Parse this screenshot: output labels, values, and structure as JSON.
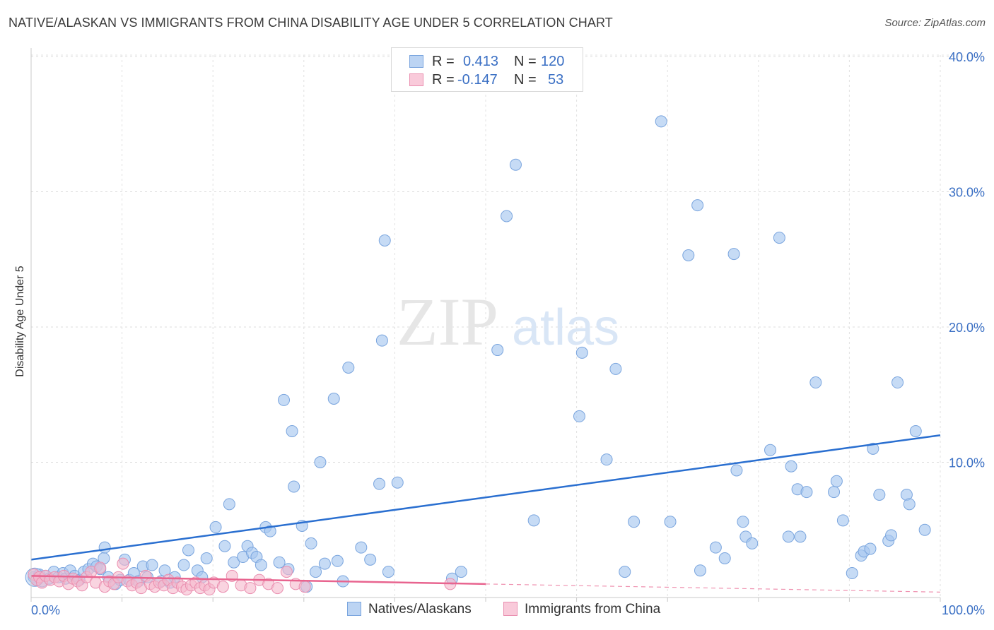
{
  "title": "NATIVE/ALASKAN VS IMMIGRANTS FROM CHINA DISABILITY AGE UNDER 5 CORRELATION CHART",
  "source": "Source: ZipAtlas.com",
  "watermark": {
    "zip": "ZIP",
    "atlas": "atlas"
  },
  "legend": {
    "series1": {
      "r_label": "R =",
      "r_value": "0.413",
      "n_label": "N =",
      "n_value": "120"
    },
    "series2": {
      "r_label": "R =",
      "r_value": "-0.147",
      "n_label": "N =",
      "n_value": "53"
    }
  },
  "chart_data": {
    "type": "scatter",
    "title": "NATIVE/ALASKAN VS IMMIGRANTS FROM CHINA DISABILITY AGE UNDER 5 CORRELATION CHART",
    "xlabel": "",
    "ylabel": "Disability Age Under 5",
    "xlim": [
      0,
      100
    ],
    "ylim": [
      0,
      41
    ],
    "x_tick_labels": [
      {
        "value": 0,
        "label": "0.0%"
      },
      {
        "value": 100,
        "label": "100.0%"
      }
    ],
    "y_tick_labels": [
      {
        "value": 10,
        "label": "10.0%"
      },
      {
        "value": 20,
        "label": "20.0%"
      },
      {
        "value": 30,
        "label": "30.0%"
      },
      {
        "value": 40,
        "label": "40.0%"
      }
    ],
    "grid": true,
    "series": [
      {
        "name": "Natives/Alaskans",
        "color": "#a8c7ef",
        "stroke": "#7aa5de",
        "trend_color": "#2a6fd0",
        "trend": {
          "x": [
            0,
            100
          ],
          "y": [
            2.8,
            12.0
          ],
          "dashed_from": null
        },
        "points": [
          [
            0.3,
            1.5
          ],
          [
            0.6,
            1.3
          ],
          [
            0.9,
            1.7
          ],
          [
            1.2,
            1.2
          ],
          [
            1.6,
            1.6
          ],
          [
            2,
            1.4
          ],
          [
            2.5,
            1.9
          ],
          [
            3,
            1.5
          ],
          [
            3.5,
            1.8
          ],
          [
            3.8,
            1.4
          ],
          [
            4.3,
            2.0
          ],
          [
            4.8,
            1.6
          ],
          [
            5.3,
            1.3
          ],
          [
            5.8,
            1.9
          ],
          [
            6.3,
            2.1
          ],
          [
            6.8,
            2.5
          ],
          [
            7.2,
            2.3
          ],
          [
            7.6,
            2.1
          ],
          [
            8,
            2.9
          ],
          [
            8.5,
            1.5
          ],
          [
            8.1,
            3.7
          ],
          [
            9.3,
            1.0
          ],
          [
            9.8,
            1.3
          ],
          [
            10.3,
            2.8
          ],
          [
            10.8,
            1.3
          ],
          [
            11.3,
            1.8
          ],
          [
            11.8,
            1.2
          ],
          [
            12.3,
            2.3
          ],
          [
            12.8,
            1.5
          ],
          [
            13.3,
            2.4
          ],
          [
            14.3,
            1.2
          ],
          [
            14.7,
            2.0
          ],
          [
            15.3,
            1.1
          ],
          [
            15.8,
            1.5
          ],
          [
            16.8,
            2.4
          ],
          [
            17.3,
            3.5
          ],
          [
            18.3,
            2.0
          ],
          [
            18.8,
            1.5
          ],
          [
            19.3,
            2.9
          ],
          [
            20.3,
            5.2
          ],
          [
            21.3,
            3.8
          ],
          [
            21.8,
            6.9
          ],
          [
            22.3,
            2.6
          ],
          [
            23.3,
            3.0
          ],
          [
            23.8,
            3.8
          ],
          [
            24.3,
            3.3
          ],
          [
            24.8,
            3.0
          ],
          [
            25.3,
            2.4
          ],
          [
            25.8,
            5.2
          ],
          [
            26.3,
            4.9
          ],
          [
            27.3,
            2.6
          ],
          [
            27.8,
            14.6
          ],
          [
            28.3,
            2.1
          ],
          [
            28.7,
            12.3
          ],
          [
            28.9,
            8.2
          ],
          [
            29.8,
            5.3
          ],
          [
            30.3,
            0.8
          ],
          [
            30.8,
            4.0
          ],
          [
            31.3,
            1.9
          ],
          [
            31.8,
            10.0
          ],
          [
            32.3,
            2.5
          ],
          [
            33.3,
            14.7
          ],
          [
            33.7,
            2.7
          ],
          [
            34.3,
            1.2
          ],
          [
            34.9,
            17.0
          ],
          [
            36.3,
            3.7
          ],
          [
            37.3,
            2.8
          ],
          [
            38.3,
            8.4
          ],
          [
            38.6,
            19.0
          ],
          [
            38.9,
            26.4
          ],
          [
            39.3,
            1.9
          ],
          [
            40.3,
            8.5
          ],
          [
            46.3,
            1.4
          ],
          [
            47.3,
            1.9
          ],
          [
            51.3,
            18.3
          ],
          [
            52.3,
            28.2
          ],
          [
            53.3,
            32.0
          ],
          [
            55.3,
            5.7
          ],
          [
            60.3,
            13.4
          ],
          [
            60.6,
            18.1
          ],
          [
            63.3,
            10.2
          ],
          [
            64.3,
            16.9
          ],
          [
            65.3,
            1.9
          ],
          [
            66.3,
            5.6
          ],
          [
            69.3,
            35.2
          ],
          [
            70.3,
            5.6
          ],
          [
            72.3,
            25.3
          ],
          [
            73.3,
            29.0
          ],
          [
            73.6,
            2.0
          ],
          [
            75.3,
            3.7
          ],
          [
            76.3,
            2.9
          ],
          [
            77.3,
            25.4
          ],
          [
            77.6,
            9.4
          ],
          [
            78.3,
            5.6
          ],
          [
            78.6,
            4.5
          ],
          [
            79.3,
            4.0
          ],
          [
            81.3,
            10.9
          ],
          [
            82.3,
            26.6
          ],
          [
            83.3,
            4.5
          ],
          [
            83.6,
            9.7
          ],
          [
            84.3,
            8.0
          ],
          [
            84.6,
            4.5
          ],
          [
            85.3,
            7.8
          ],
          [
            86.3,
            15.9
          ],
          [
            88.3,
            7.8
          ],
          [
            88.6,
            8.6
          ],
          [
            89.3,
            5.7
          ],
          [
            90.3,
            1.8
          ],
          [
            91.3,
            3.1
          ],
          [
            91.6,
            3.4
          ],
          [
            92.3,
            3.6
          ],
          [
            92.6,
            11.0
          ],
          [
            93.3,
            7.6
          ],
          [
            94.3,
            4.2
          ],
          [
            94.6,
            4.6
          ],
          [
            95.3,
            15.9
          ],
          [
            96.3,
            7.6
          ],
          [
            96.6,
            6.9
          ],
          [
            97.3,
            12.3
          ],
          [
            98.3,
            5.0
          ]
        ]
      },
      {
        "name": "Immigrants from China",
        "color": "#f5b8cc",
        "stroke": "#ea8fb0",
        "trend_color": "#e8648f",
        "trend": {
          "x": [
            0,
            100
          ],
          "y": [
            1.6,
            0.4
          ],
          "dashed_from": 50
        },
        "points": [
          [
            0.3,
            1.7
          ],
          [
            0.6,
            1.3
          ],
          [
            0.9,
            1.5
          ],
          [
            1.2,
            1.1
          ],
          [
            1.6,
            1.6
          ],
          [
            2.1,
            1.3
          ],
          [
            2.6,
            1.5
          ],
          [
            3.1,
            1.2
          ],
          [
            3.6,
            1.6
          ],
          [
            4.1,
            1.0
          ],
          [
            4.6,
            1.4
          ],
          [
            5.1,
            1.2
          ],
          [
            5.6,
            0.9
          ],
          [
            6.1,
            1.5
          ],
          [
            6.6,
            1.9
          ],
          [
            7.1,
            1.1
          ],
          [
            7.6,
            2.2
          ],
          [
            8.1,
            0.8
          ],
          [
            8.6,
            1.2
          ],
          [
            9.1,
            1.0
          ],
          [
            9.6,
            1.5
          ],
          [
            10.1,
            2.5
          ],
          [
            10.6,
            1.2
          ],
          [
            11.1,
            0.9
          ],
          [
            11.6,
            1.1
          ],
          [
            12.1,
            0.7
          ],
          [
            12.6,
            1.6
          ],
          [
            13.1,
            1.0
          ],
          [
            13.6,
            0.8
          ],
          [
            14.1,
            1.1
          ],
          [
            14.6,
            0.9
          ],
          [
            15.1,
            1.3
          ],
          [
            15.6,
            0.7
          ],
          [
            16.1,
            1.1
          ],
          [
            16.6,
            0.8
          ],
          [
            17.1,
            0.6
          ],
          [
            17.6,
            0.9
          ],
          [
            18.1,
            1.1
          ],
          [
            18.6,
            0.7
          ],
          [
            19.1,
            0.9
          ],
          [
            19.6,
            0.6
          ],
          [
            20.1,
            1.1
          ],
          [
            21.1,
            0.8
          ],
          [
            22.1,
            1.6
          ],
          [
            23.1,
            0.9
          ],
          [
            24.1,
            0.7
          ],
          [
            25.1,
            1.3
          ],
          [
            26.1,
            1.0
          ],
          [
            27.1,
            0.7
          ],
          [
            28.1,
            1.9
          ],
          [
            29.1,
            1.0
          ],
          [
            30.1,
            0.8
          ],
          [
            46.1,
            1.0
          ]
        ]
      }
    ]
  },
  "bottom_legend": [
    "Natives/Alaskans",
    "Immigrants from China"
  ]
}
